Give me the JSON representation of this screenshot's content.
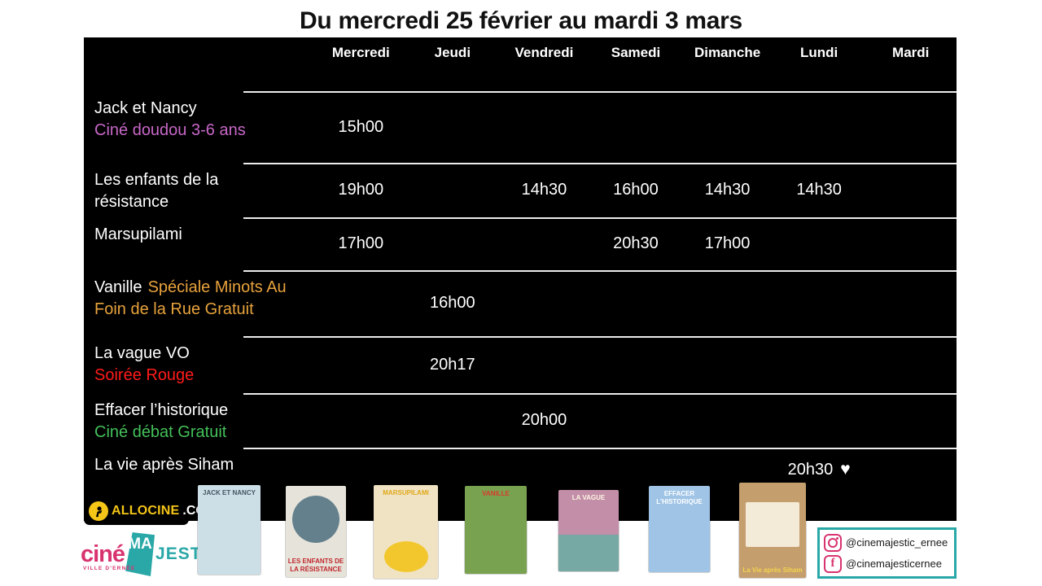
{
  "title": "Du mercredi 25 février au mardi 3 mars",
  "days": [
    "Mercredi",
    "Jeudi",
    "Vendredi",
    "Samedi",
    "Dimanche",
    "Lundi",
    "Mardi"
  ],
  "rows": [
    {
      "line1_white": "Jack et Nancy",
      "line1_accent": "",
      "line2_white": "",
      "line2_accent": "Ciné doudou 3-6 ans",
      "accent_color": "#c767c7",
      "times": [
        "15h00",
        "",
        "",
        "",
        "",
        "",
        ""
      ]
    },
    {
      "line1_white": "Les enfants de la",
      "line1_accent": "",
      "line2_white": "résistance",
      "line2_accent": "",
      "accent_color": "",
      "times": [
        "19h00",
        "",
        "14h30",
        "16h00",
        "14h30",
        "14h30",
        ""
      ]
    },
    {
      "line1_white": "Marsupilami",
      "line1_accent": "",
      "line2_white": "",
      "line2_accent": "",
      "accent_color": "",
      "times": [
        "17h00",
        "",
        "",
        "20h30",
        "17h00",
        "",
        ""
      ]
    },
    {
      "line1_white": "Vanille",
      "line1_accent": "Spéciale Minots Au",
      "line2_white": "",
      "line2_accent": "Foin de la Rue Gratuit",
      "accent_color": "#e8a33d",
      "times": [
        "",
        "16h00",
        "",
        "",
        "",
        "",
        ""
      ]
    },
    {
      "line1_white": "La vague VO",
      "line1_accent": "",
      "line2_white": "",
      "line2_accent": "Soirée Rouge",
      "accent_color": "#ff1a1a",
      "times": [
        "",
        "20h17",
        "",
        "",
        "",
        "",
        ""
      ]
    },
    {
      "line1_white": "Effacer l’historique",
      "line1_accent": "",
      "line2_white": "",
      "line2_accent": "Ciné débat Gratuit",
      "accent_color": "#44c05a",
      "times": [
        "",
        "",
        "20h00",
        "",
        "",
        "",
        ""
      ]
    },
    {
      "line1_white": "La vie après Siham",
      "line1_accent": "",
      "line2_white": "",
      "line2_accent": "",
      "accent_color": "",
      "times": [
        "",
        "",
        "",
        "",
        "",
        "20h30",
        ""
      ],
      "heart_col": 6,
      "heart_icon": "♥"
    }
  ],
  "posters": [
    {
      "label": "JACK ET NANCY",
      "bg": "#ccdfe7",
      "label_color": "#44555f"
    },
    {
      "label": "LES ENFANTS DE LA RÉSISTANCE",
      "bg": "#e6e3da",
      "label_color": "#c0272d"
    },
    {
      "label": "MARSUPILAMI",
      "bg": "#f0e3c4",
      "label_color": "#e0a818"
    },
    {
      "label": "VANILLE",
      "bg": "#79a250",
      "label_color": "#d93a2b"
    },
    {
      "label": "LA VAGUE",
      "bg": "#c38ea8",
      "label_color": "#fdf6e3"
    },
    {
      "label": "EFFACER L'HISTORIQUE",
      "bg": "#9fc4e6",
      "label_color": "#ffffff"
    },
    {
      "label": "La Vie après Siham",
      "bg": "#c59e6e",
      "label_color": "#f2d44c"
    }
  ],
  "footer": {
    "allocine": {
      "brand": "ALLOCINE",
      "tld": ".COM"
    },
    "cinemajestic": {
      "part1": "ciné",
      "part2": "MA",
      "part3": "JESTIC",
      "tagline": "VILLE D'ERNÉE"
    },
    "social": {
      "instagram_handle": "@cinemajestic_ernee",
      "facebook_handle": "@cinemajesticernee"
    }
  },
  "colors": {
    "table_bg": "#000000",
    "row_line": "#ececec",
    "brand_pink": "#d8336f",
    "brand_teal": "#2aa7a7",
    "allocine_yellow": "#f5c518",
    "text_white": "#ffffff",
    "title_color": "#111111"
  }
}
